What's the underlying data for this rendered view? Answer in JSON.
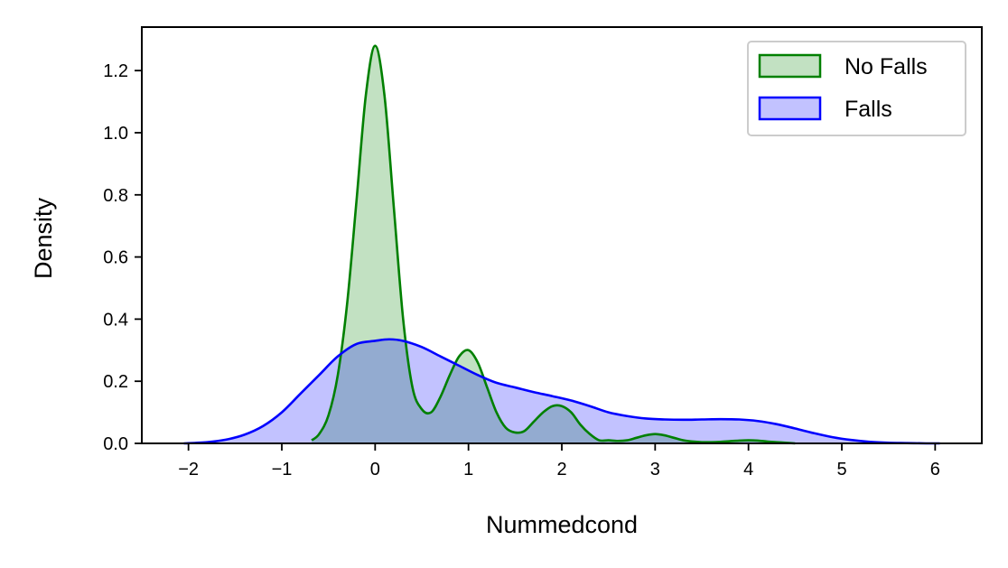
{
  "chart_data": {
    "type": "area",
    "xlabel": "Nummedcond",
    "ylabel": "Density",
    "xlim": [
      -2.5,
      6.5
    ],
    "ylim": [
      0,
      1.34
    ],
    "xticks": [
      -2,
      -1,
      0,
      1,
      2,
      3,
      4,
      5,
      6
    ],
    "xtick_labels": [
      "−2",
      "−1",
      "0",
      "1",
      "2",
      "3",
      "4",
      "5",
      "6"
    ],
    "yticks": [
      0.0,
      0.2,
      0.4,
      0.6,
      0.8,
      1.0,
      1.2
    ],
    "ytick_labels": [
      "0.0",
      "0.2",
      "0.4",
      "0.6",
      "0.8",
      "1.0",
      "1.2"
    ],
    "grid": false,
    "legend_position": "top-right",
    "series": [
      {
        "name": "No Falls",
        "line_color": "#008000",
        "fill_color": "#008000",
        "fill_opacity": 0.24,
        "x": [
          -0.68,
          -0.6,
          -0.5,
          -0.4,
          -0.3,
          -0.2,
          -0.1,
          0.0,
          0.1,
          0.2,
          0.3,
          0.4,
          0.5,
          0.6,
          0.7,
          0.8,
          0.9,
          1.0,
          1.1,
          1.2,
          1.3,
          1.4,
          1.5,
          1.6,
          1.7,
          1.8,
          1.9,
          2.0,
          2.1,
          2.2,
          2.3,
          2.4,
          2.5,
          2.6,
          2.7,
          2.8,
          2.9,
          3.0,
          3.1,
          3.2,
          3.3,
          3.4,
          3.5,
          3.6,
          3.7,
          3.8,
          3.9,
          4.0,
          4.1,
          4.2,
          4.3,
          4.4,
          4.5
        ],
        "y": [
          0.01,
          0.03,
          0.09,
          0.22,
          0.45,
          0.78,
          1.12,
          1.28,
          1.12,
          0.76,
          0.4,
          0.18,
          0.11,
          0.1,
          0.15,
          0.22,
          0.28,
          0.3,
          0.26,
          0.18,
          0.1,
          0.05,
          0.035,
          0.04,
          0.07,
          0.1,
          0.12,
          0.12,
          0.1,
          0.06,
          0.03,
          0.01,
          0.01,
          0.008,
          0.01,
          0.018,
          0.026,
          0.03,
          0.026,
          0.018,
          0.01,
          0.006,
          0.004,
          0.004,
          0.005,
          0.007,
          0.009,
          0.01,
          0.009,
          0.006,
          0.004,
          0.002,
          0.0
        ]
      },
      {
        "name": "Falls",
        "line_color": "#0000ff",
        "fill_color": "#0000ff",
        "fill_opacity": 0.24,
        "x": [
          -2.05,
          -1.8,
          -1.6,
          -1.4,
          -1.2,
          -1.0,
          -0.8,
          -0.6,
          -0.4,
          -0.2,
          0.0,
          0.15,
          0.3,
          0.5,
          0.7,
          0.9,
          1.1,
          1.3,
          1.5,
          1.7,
          1.9,
          2.1,
          2.3,
          2.5,
          2.7,
          2.9,
          3.1,
          3.3,
          3.5,
          3.7,
          3.9,
          4.1,
          4.3,
          4.5,
          4.7,
          4.9,
          5.1,
          5.3,
          5.5,
          5.7,
          5.9,
          6.05
        ],
        "y": [
          0.0,
          0.004,
          0.012,
          0.028,
          0.056,
          0.1,
          0.16,
          0.22,
          0.28,
          0.32,
          0.33,
          0.335,
          0.33,
          0.31,
          0.28,
          0.25,
          0.22,
          0.195,
          0.18,
          0.165,
          0.152,
          0.138,
          0.12,
          0.1,
          0.088,
          0.08,
          0.077,
          0.076,
          0.077,
          0.078,
          0.077,
          0.072,
          0.062,
          0.048,
          0.033,
          0.02,
          0.011,
          0.005,
          0.002,
          0.001,
          0.0,
          0.0
        ]
      }
    ]
  }
}
